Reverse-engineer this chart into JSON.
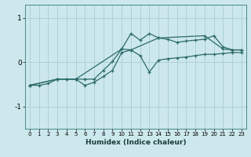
{
  "xlabel": "Humidex (Indice chaleur)",
  "xlim": [
    -0.5,
    23.5
  ],
  "ylim": [
    -1.5,
    1.3
  ],
  "yticks": [
    -1,
    0,
    1
  ],
  "ytick_labels": [
    "-1",
    "0",
    "1"
  ],
  "xticks": [
    0,
    1,
    2,
    3,
    4,
    5,
    6,
    7,
    8,
    9,
    10,
    11,
    12,
    13,
    14,
    15,
    16,
    17,
    18,
    19,
    20,
    21,
    22,
    23
  ],
  "bg_color": "#cce8ec",
  "line_color": "#2d6b6b",
  "grid_color": "#aacdd4",
  "line1_x": [
    0,
    1,
    2,
    3,
    4,
    5,
    6,
    7,
    8,
    9,
    10,
    11,
    12,
    13,
    14,
    15,
    16,
    17,
    18,
    19,
    20,
    21,
    22,
    23
  ],
  "line1_y": [
    -0.52,
    -0.52,
    -0.48,
    -0.38,
    -0.38,
    -0.38,
    -0.52,
    -0.45,
    -0.32,
    -0.18,
    0.22,
    0.28,
    0.15,
    -0.22,
    0.05,
    0.08,
    0.1,
    0.12,
    0.15,
    0.18,
    0.18,
    0.2,
    0.22,
    0.22
  ],
  "line2_x": [
    0,
    3,
    4,
    5,
    6,
    7,
    8,
    9,
    10,
    11,
    12,
    13,
    14,
    15,
    16,
    17,
    18,
    19,
    20,
    21,
    22,
    23
  ],
  "line2_y": [
    -0.52,
    -0.38,
    -0.38,
    -0.38,
    -0.38,
    -0.38,
    -0.18,
    0.02,
    0.3,
    0.65,
    0.5,
    0.65,
    0.55,
    0.52,
    0.45,
    0.48,
    0.5,
    0.52,
    0.6,
    0.35,
    0.28,
    0.28
  ],
  "line3_x": [
    0,
    3,
    5,
    10,
    11,
    14,
    19,
    21,
    22,
    23
  ],
  "line3_y": [
    -0.52,
    -0.38,
    -0.38,
    0.3,
    0.28,
    0.55,
    0.6,
    0.3,
    0.28,
    0.28
  ]
}
